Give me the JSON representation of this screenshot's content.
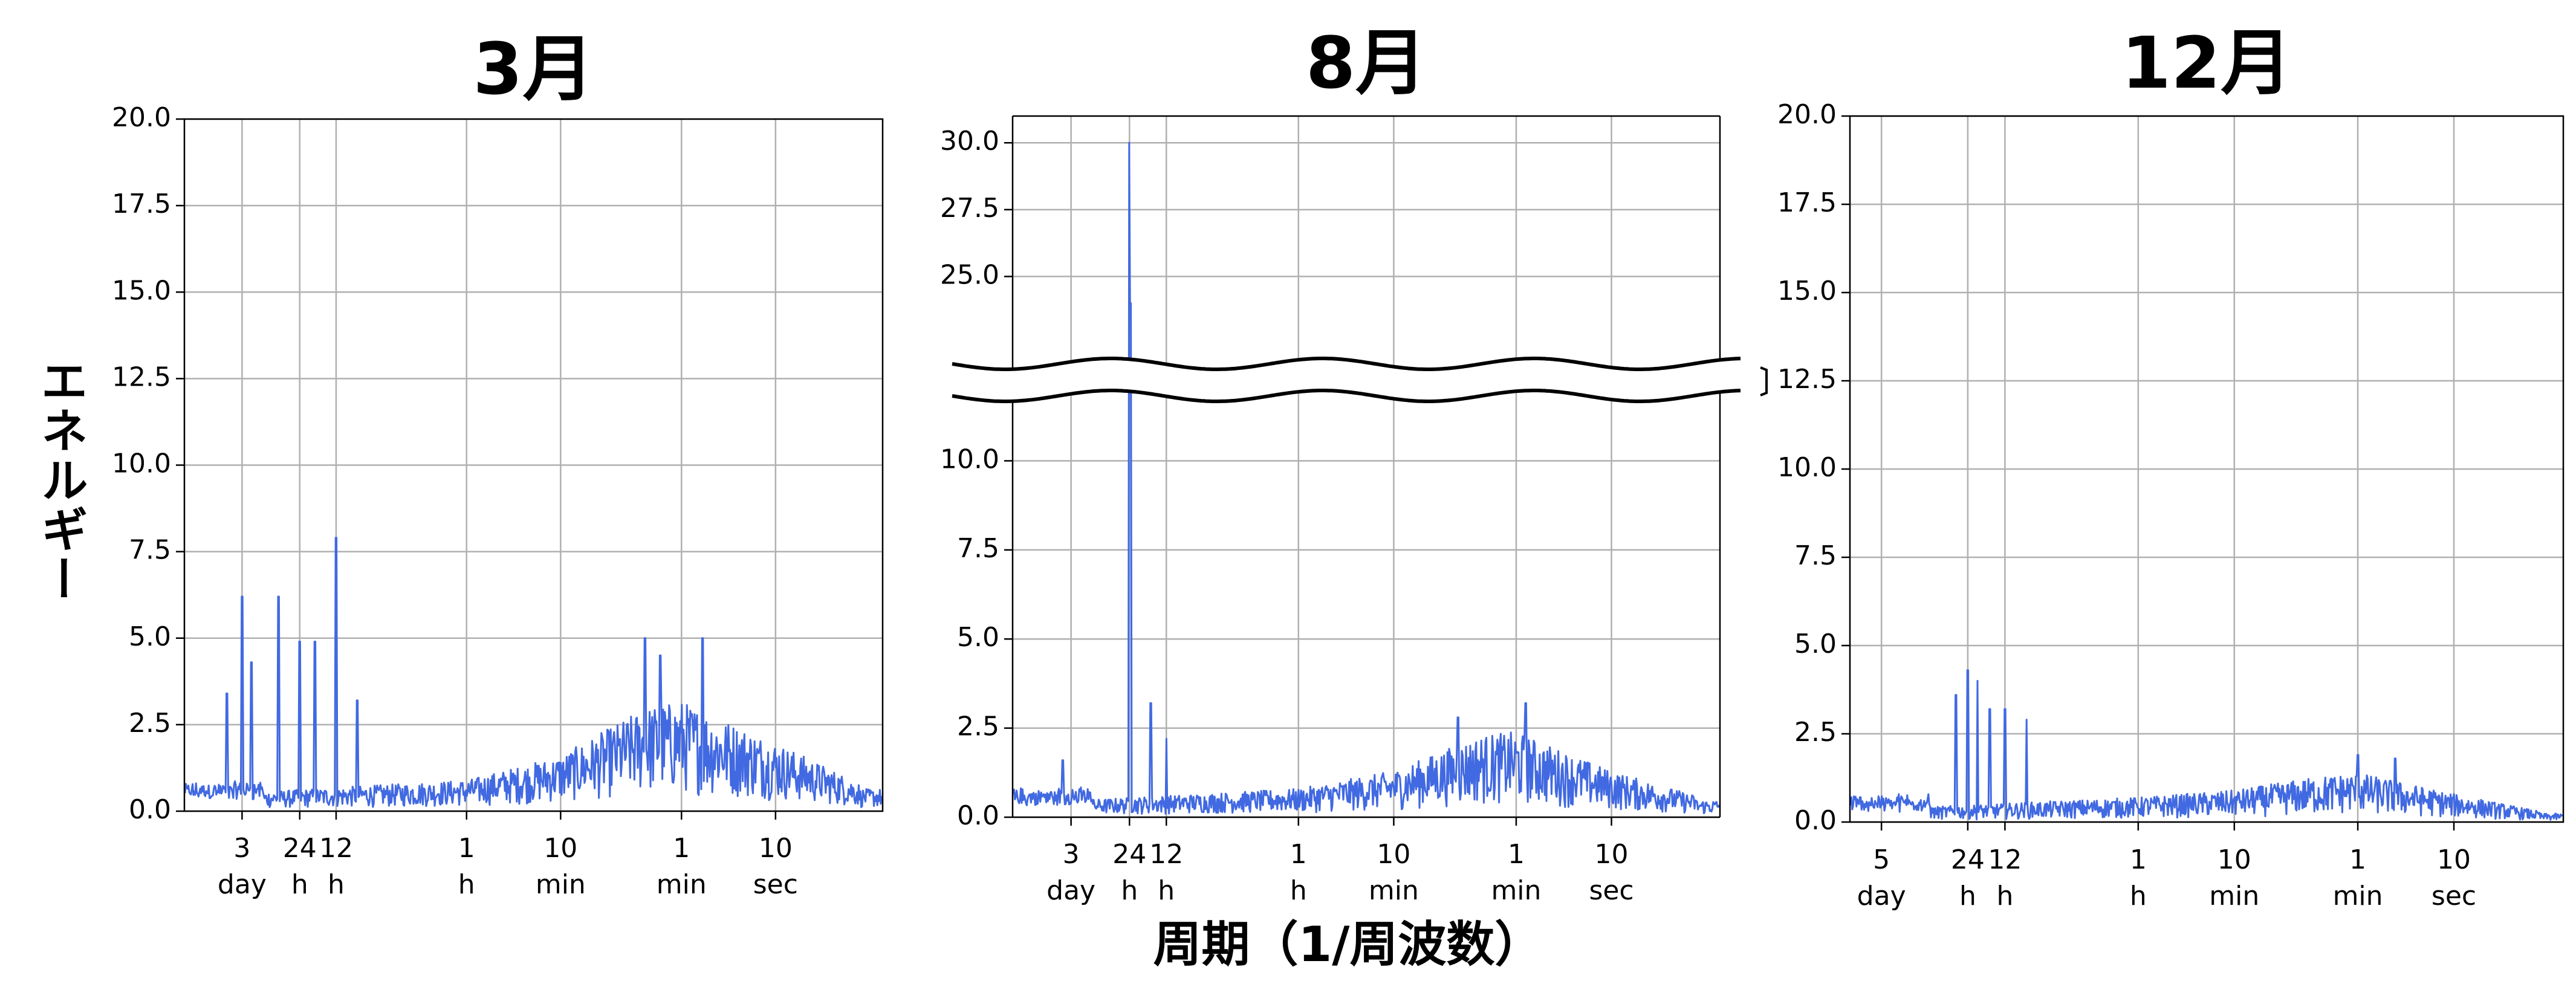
{
  "figure": {
    "ylabel": "エネルギー",
    "xlabel": "周期（1/周波数）"
  },
  "colors": {
    "line": "#4169e1",
    "grid": "#b0b0b0",
    "axis": "#000000",
    "break_mark": "#000000"
  },
  "chart_data": [
    {
      "type": "line",
      "title": "3月",
      "ylim": [
        0,
        20
      ],
      "yticks": [
        "0.0",
        "2.5",
        "5.0",
        "7.5",
        "10.0",
        "12.5",
        "15.0",
        "17.5",
        "20.0"
      ],
      "x_scale": "log (frequency)",
      "grid": true,
      "xticks": [
        {
          "top": "3",
          "bottom": "day"
        },
        {
          "top": "24",
          "bottom": "h"
        },
        {
          "top": "12",
          "bottom": "h"
        },
        {
          "top": "1",
          "bottom": "h"
        },
        {
          "top": "10",
          "bottom": "min"
        },
        {
          "top": "1",
          "bottom": "min"
        },
        {
          "top": "10",
          "bottom": "sec"
        }
      ],
      "peaks": [
        {
          "period": "4 day",
          "value": 3.4
        },
        {
          "period": "3 day",
          "value": 6.2
        },
        {
          "period": "2.5 day",
          "value": 4.3
        },
        {
          "period": "36 h",
          "value": 6.2
        },
        {
          "period": "24 h",
          "value": 4.9
        },
        {
          "period": "18 h",
          "value": 4.9
        },
        {
          "period": "12 h",
          "value": 7.9
        },
        {
          "period": "8 h",
          "value": 3.2
        },
        {
          "period": "2 min",
          "value": 5.0
        },
        {
          "period": "1.5 min",
          "value": 4.5
        },
        {
          "period": "40 sec",
          "value": 5.0
        }
      ],
      "envelope": [
        {
          "period": "1 h",
          "value": 0.9
        },
        {
          "period": "10 min",
          "value": 1.6
        },
        {
          "period": "2 min",
          "value": 3.0
        },
        {
          "period": "1 min",
          "value": 3.2
        },
        {
          "period": "10 sec",
          "value": 2.0
        },
        {
          "period": "2 sec",
          "value": 0.8
        }
      ]
    },
    {
      "type": "line",
      "title": "8月",
      "axis_break": true,
      "ylim_lower": [
        0,
        12.5
      ],
      "ylim_upper": [
        22.5,
        31.0
      ],
      "yticks": [
        "0.0",
        "2.5",
        "5.0",
        "7.5",
        "10.0",
        "25.0",
        "27.5",
        "30.0"
      ],
      "x_scale": "log (frequency)",
      "grid": true,
      "xticks": [
        {
          "top": "3",
          "bottom": "day"
        },
        {
          "top": "24",
          "bottom": "h"
        },
        {
          "top": "12",
          "bottom": "h"
        },
        {
          "top": "1",
          "bottom": "h"
        },
        {
          "top": "10",
          "bottom": "min"
        },
        {
          "top": "1",
          "bottom": "min"
        },
        {
          "top": "10",
          "bottom": "sec"
        }
      ],
      "peaks": [
        {
          "period": "3.5 day",
          "value": 1.6
        },
        {
          "period": "24 h",
          "value": 30.0
        },
        {
          "period": "23.5 h",
          "value": 24.0
        },
        {
          "period": "16 h",
          "value": 3.2
        },
        {
          "period": "12 h",
          "value": 2.2
        },
        {
          "period": "3 min",
          "value": 2.8
        },
        {
          "period": "50 sec",
          "value": 3.2
        }
      ],
      "envelope": [
        {
          "period": "1 h",
          "value": 0.8
        },
        {
          "period": "10 min",
          "value": 1.3
        },
        {
          "period": "2 min",
          "value": 2.3
        },
        {
          "period": "1 min",
          "value": 2.4
        },
        {
          "period": "10 sec",
          "value": 1.3
        },
        {
          "period": "2 sec",
          "value": 0.6
        }
      ]
    },
    {
      "type": "line",
      "title": "12月",
      "ylim": [
        0,
        20
      ],
      "yticks": [
        "0.0",
        "2.5",
        "5.0",
        "7.5",
        "10.0",
        "12.5",
        "15.0",
        "17.5",
        "20.0"
      ],
      "x_scale": "log (frequency)",
      "grid": true,
      "xticks": [
        {
          "top": "5",
          "bottom": "day"
        },
        {
          "top": "24",
          "bottom": "h"
        },
        {
          "top": "12",
          "bottom": "h"
        },
        {
          "top": "1",
          "bottom": "h"
        },
        {
          "top": "10",
          "bottom": "min"
        },
        {
          "top": "1",
          "bottom": "min"
        },
        {
          "top": "10",
          "bottom": "sec"
        }
      ],
      "peaks": [
        {
          "period": "30 h",
          "value": 3.6
        },
        {
          "period": "24 h",
          "value": 4.3
        },
        {
          "period": "20 h",
          "value": 4.0
        },
        {
          "period": "16 h",
          "value": 3.2
        },
        {
          "period": "12 h",
          "value": 3.2
        },
        {
          "period": "8 h",
          "value": 2.9
        },
        {
          "period": "1 min",
          "value": 1.9
        },
        {
          "period": "30 sec",
          "value": 1.8
        }
      ],
      "envelope": [
        {
          "period": "1 h",
          "value": 0.7
        },
        {
          "period": "10 min",
          "value": 0.9
        },
        {
          "period": "2 min",
          "value": 1.3
        },
        {
          "period": "1 min",
          "value": 1.4
        },
        {
          "period": "10 sec",
          "value": 0.8
        },
        {
          "period": "2 sec",
          "value": 0.3
        }
      ]
    }
  ]
}
